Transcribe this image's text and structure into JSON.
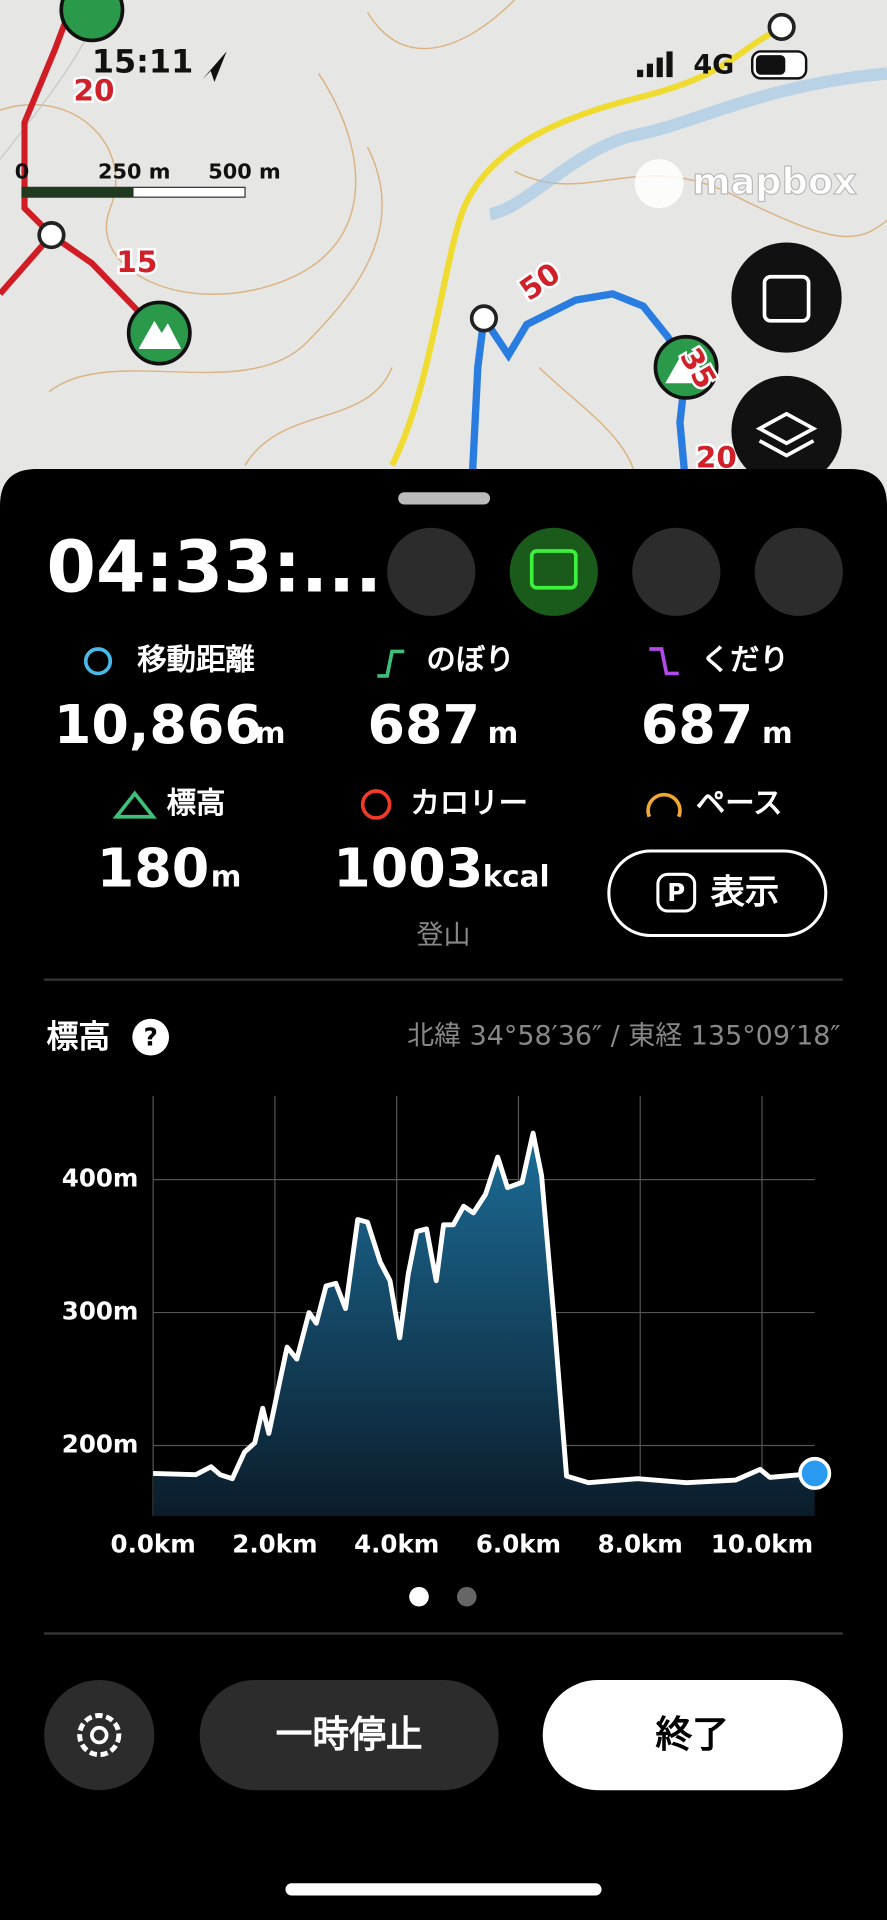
{
  "status_bar": {
    "time": "15:11",
    "network": "4G"
  },
  "map": {
    "scale_labels": [
      "0",
      "250 m",
      "500 m"
    ],
    "attribution": "mapbox",
    "route_labels": [
      "20",
      "15",
      "50",
      "35",
      "20"
    ]
  },
  "timer": "04:33:...",
  "stats": [
    {
      "label": "移動距離",
      "value": "10,866",
      "unit": "m"
    },
    {
      "label": "のぼり",
      "value": "687",
      "unit": "m"
    },
    {
      "label": "くだり",
      "value": "687",
      "unit": "m"
    },
    {
      "label": "標高",
      "value": "180",
      "unit": "m"
    },
    {
      "label": "カロリー",
      "value": "1003",
      "unit": "kcal",
      "activity": "登山"
    },
    {
      "label": "ペース"
    }
  ],
  "pace_button": {
    "icon": "P",
    "label": "表示"
  },
  "chart_header": {
    "title": "標高",
    "help": "?",
    "coordinates": "北緯 34°58′36″ / 東経 135°09′18″"
  },
  "chart_data": {
    "type": "area",
    "x": [
      0,
      0.7,
      0.95,
      1.1,
      1.3,
      1.5,
      1.67,
      1.8,
      1.9,
      2.07,
      2.2,
      2.36,
      2.56,
      2.68,
      2.84,
      3.0,
      3.16,
      3.36,
      3.52,
      3.73,
      3.89,
      4.05,
      4.19,
      4.33,
      4.49,
      4.65,
      4.77,
      4.93,
      5.1,
      5.26,
      5.46,
      5.66,
      5.82,
      6.06,
      6.24,
      6.38,
      6.59,
      6.79,
      7.15,
      7.96,
      8.76,
      9.57,
      9.97,
      10.13,
      10.866
    ],
    "values": [
      179,
      178,
      184,
      178,
      175,
      195,
      202,
      228,
      209,
      246,
      274,
      265,
      300,
      292,
      320,
      322,
      303,
      370,
      368,
      338,
      324,
      281,
      329,
      361,
      363,
      324,
      366,
      366,
      380,
      375,
      389,
      417,
      394,
      398,
      435,
      403,
      292,
      177,
      172,
      175,
      172,
      174,
      182,
      176,
      179
    ],
    "color": "#ffffff",
    "xlim": [
      0,
      10.866
    ],
    "ylim": [
      147,
      463
    ],
    "xticks": [
      {
        "value": 0,
        "label": "0.0km"
      },
      {
        "value": 2,
        "label": "2.0km"
      },
      {
        "value": 4,
        "label": "4.0km"
      },
      {
        "value": 6,
        "label": "6.0km"
      },
      {
        "value": 8,
        "label": "8.0km"
      },
      {
        "value": 10,
        "label": "10.0km"
      }
    ],
    "yticks": [
      {
        "value": 200,
        "label": "200m"
      },
      {
        "value": 300,
        "label": "300m"
      },
      {
        "value": 400,
        "label": "400m"
      }
    ],
    "grid": true
  },
  "buttons": {
    "pause": "一時停止",
    "finish": "終了"
  }
}
